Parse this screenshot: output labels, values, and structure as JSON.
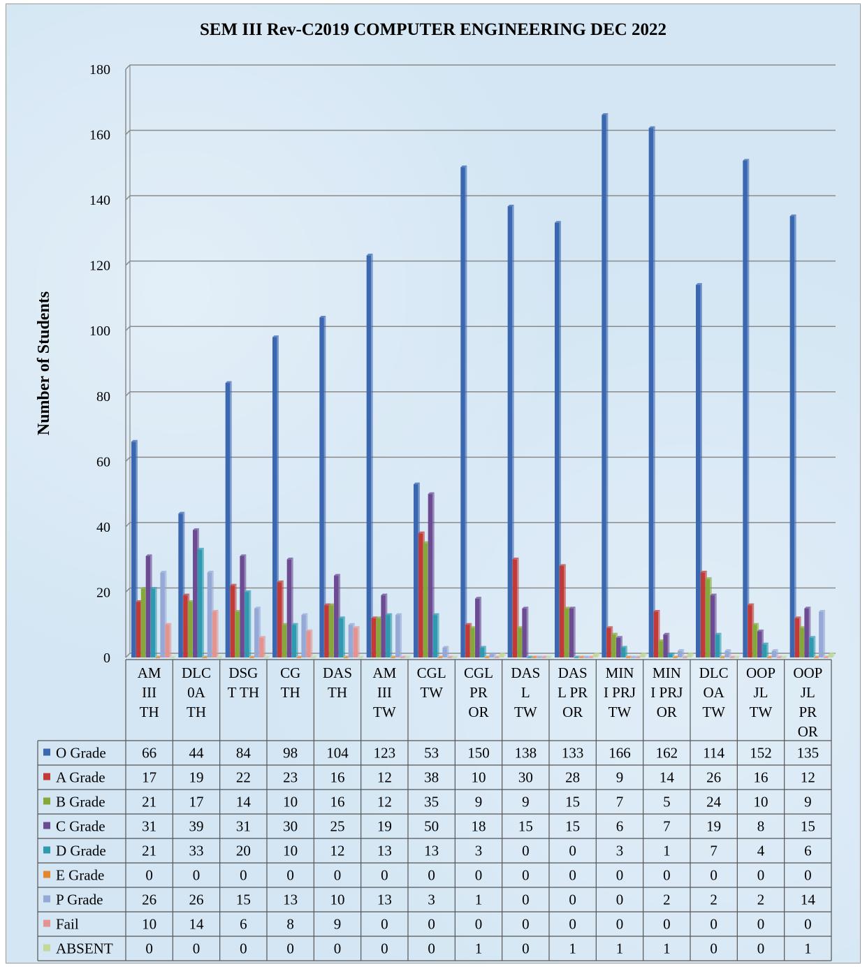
{
  "chart_data": {
    "type": "bar",
    "title": "SEM III Rev-C2019 COMPUTER ENGINEERING DEC 2022",
    "ylabel": "Number of Students",
    "ylim": [
      0,
      180
    ],
    "yticks": [
      0,
      20,
      40,
      60,
      80,
      100,
      120,
      140,
      160,
      180
    ],
    "grid": true,
    "legend": "data-table",
    "categories": [
      [
        "AM",
        "III",
        "TH"
      ],
      [
        "DLC",
        "0A",
        "TH"
      ],
      [
        "DSG",
        "T TH"
      ],
      [
        "CG",
        "TH"
      ],
      [
        "DAS",
        "TH"
      ],
      [
        "AM",
        "III",
        "TW"
      ],
      [
        "CGL",
        "TW"
      ],
      [
        "CGL",
        "PR",
        "OR"
      ],
      [
        "DAS",
        "L",
        "TW"
      ],
      [
        "DAS",
        "L PR",
        "OR"
      ],
      [
        "MIN",
        "I PRJ",
        "TW"
      ],
      [
        "MIN",
        "I PRJ",
        "OR"
      ],
      [
        "DLC",
        "OA",
        "TW"
      ],
      [
        "OOP",
        "JL",
        "TW"
      ],
      [
        "OOP",
        "JL",
        "PR",
        "OR"
      ]
    ],
    "series": [
      {
        "name": "O Grade",
        "color": "#3a67b0",
        "values": [
          66,
          44,
          84,
          98,
          104,
          123,
          53,
          150,
          138,
          133,
          166,
          162,
          114,
          152,
          135
        ]
      },
      {
        "name": "A Grade",
        "color": "#c23a37",
        "values": [
          17,
          19,
          22,
          23,
          16,
          12,
          38,
          10,
          30,
          28,
          9,
          14,
          26,
          16,
          12
        ]
      },
      {
        "name": "B Grade",
        "color": "#86a83a",
        "values": [
          21,
          17,
          14,
          10,
          16,
          12,
          35,
          9,
          9,
          15,
          7,
          5,
          24,
          10,
          9
        ]
      },
      {
        "name": "C Grade",
        "color": "#6c4b93",
        "values": [
          31,
          39,
          31,
          30,
          25,
          19,
          50,
          18,
          15,
          15,
          6,
          7,
          19,
          8,
          15
        ]
      },
      {
        "name": "D Grade",
        "color": "#2f9aaf",
        "values": [
          21,
          33,
          20,
          10,
          12,
          13,
          13,
          3,
          0,
          0,
          3,
          1,
          7,
          4,
          6
        ]
      },
      {
        "name": "E Grade",
        "color": "#e3862c",
        "values": [
          0,
          0,
          0,
          0,
          0,
          0,
          0,
          0,
          0,
          0,
          0,
          0,
          0,
          0,
          0
        ]
      },
      {
        "name": "P Grade",
        "color": "#96a9d6",
        "values": [
          26,
          26,
          15,
          13,
          10,
          13,
          3,
          1,
          0,
          0,
          0,
          2,
          2,
          2,
          14
        ]
      },
      {
        "name": "Fail",
        "color": "#e39390",
        "values": [
          10,
          14,
          6,
          8,
          9,
          0,
          0,
          0,
          0,
          0,
          0,
          0,
          0,
          0,
          0
        ]
      },
      {
        "name": "ABSENT",
        "color": "#c2d99a",
        "values": [
          0,
          0,
          0,
          0,
          0,
          0,
          0,
          1,
          0,
          1,
          1,
          1,
          0,
          0,
          1
        ]
      }
    ]
  }
}
